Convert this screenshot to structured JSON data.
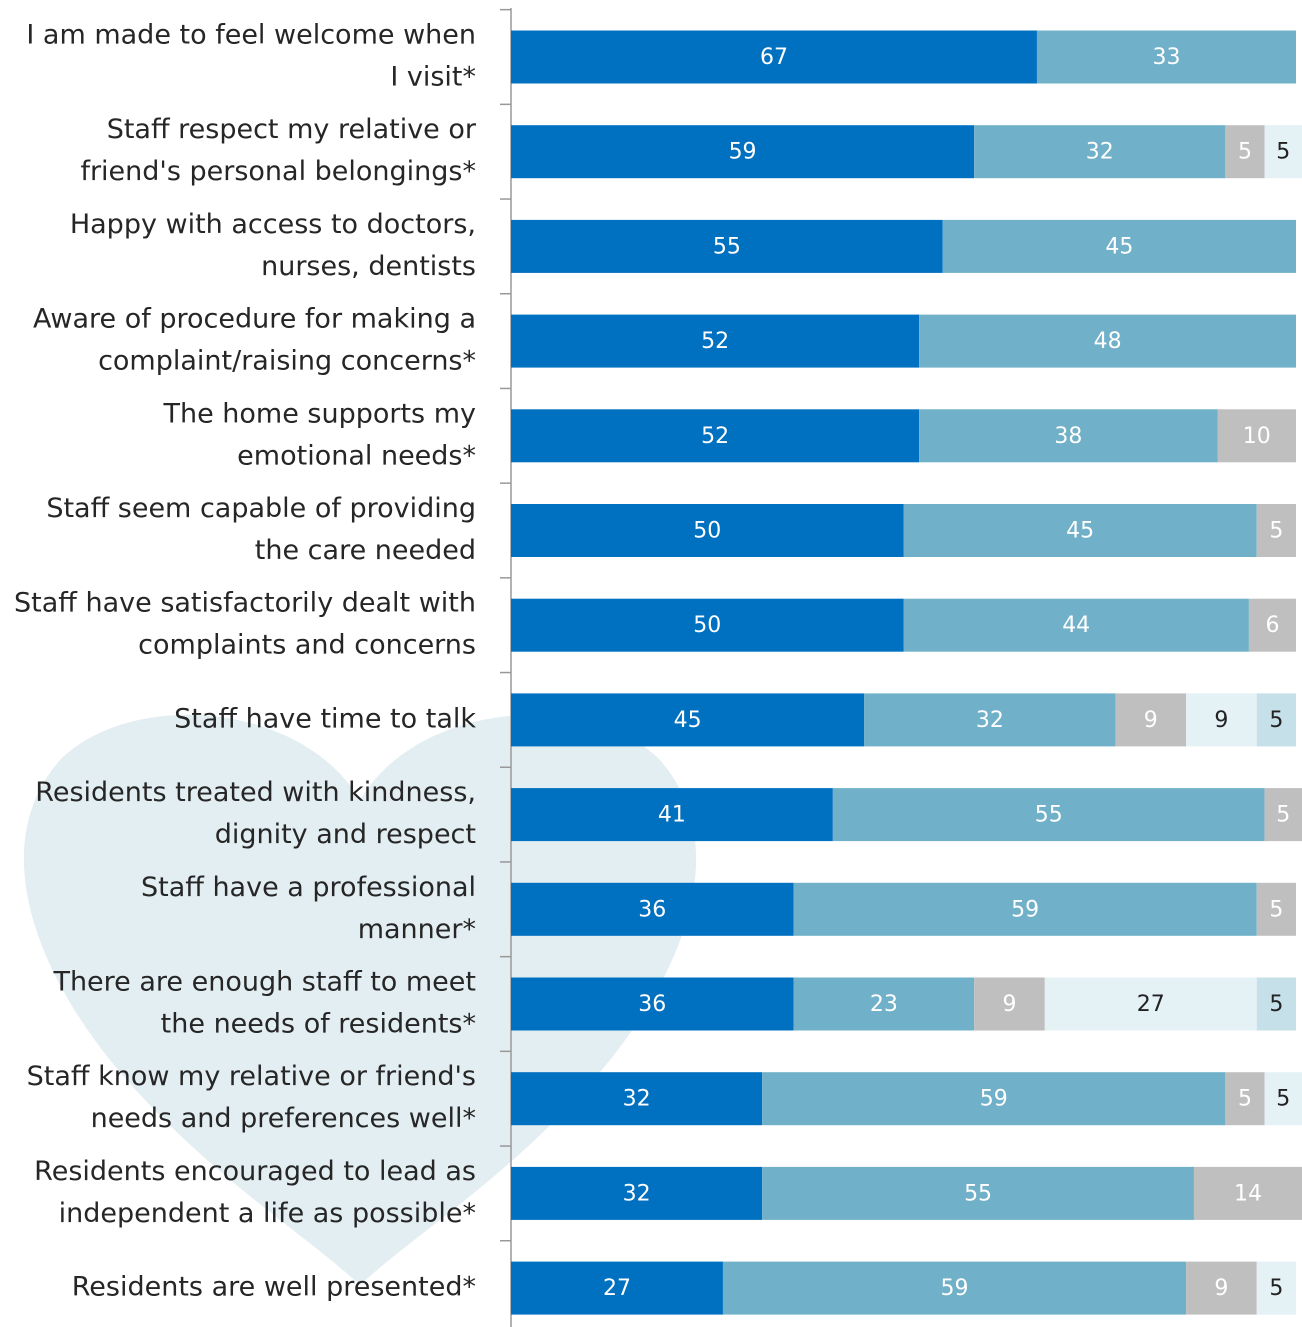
{
  "chart_data": {
    "type": "stacked-bar-horizontal",
    "categories": [
      [
        "I am made to feel welcome when",
        "I visit*"
      ],
      [
        "Staff respect my relative or",
        "friend's personal belongings*"
      ],
      [
        "Happy with access to doctors,",
        "nurses, dentists"
      ],
      [
        "Aware of procedure for making a",
        "complaint/raising concerns*"
      ],
      [
        "The home supports my",
        "emotional needs*"
      ],
      [
        "Staff seem capable of providing",
        "the care needed"
      ],
      [
        "Staff have satisfactorily dealt with",
        "complaints and concerns"
      ],
      [
        "Staff have time to talk"
      ],
      [
        "Residents treated with kindness,",
        "dignity and respect"
      ],
      [
        "Staff have a professional",
        "manner*"
      ],
      [
        "There are enough staff to meet",
        "the needs of residents*"
      ],
      [
        "Staff know my relative or friend's",
        "needs and preferences well*"
      ],
      [
        "Residents encouraged to lead as",
        "independent a life as possible*"
      ],
      [
        "Residents are well presented*"
      ]
    ],
    "series": [
      {
        "color": "#0070c0",
        "text_color": "#ffffff",
        "values": [
          67,
          59,
          55,
          52,
          52,
          50,
          50,
          45,
          41,
          36,
          36,
          32,
          32,
          27
        ]
      },
      {
        "color": "#70b0c8",
        "text_color": "#ffffff",
        "values": [
          33,
          32,
          45,
          48,
          38,
          45,
          44,
          32,
          55,
          59,
          23,
          59,
          55,
          59
        ]
      },
      {
        "color": "#bfbfbf",
        "text_color": "#ffffff",
        "values": [
          null,
          5,
          null,
          null,
          10,
          5,
          6,
          9,
          5,
          5,
          9,
          5,
          14,
          9
        ]
      },
      {
        "color": "#e4f1f5",
        "text_color": "#222222",
        "values": [
          null,
          5,
          null,
          null,
          null,
          null,
          null,
          9,
          null,
          null,
          27,
          5,
          null,
          5
        ]
      },
      {
        "color": "#c6e0ea",
        "text_color": "#222222",
        "values": [
          null,
          null,
          null,
          null,
          null,
          null,
          null,
          5,
          null,
          null,
          5,
          null,
          null,
          null
        ]
      }
    ],
    "xlim": [
      0,
      100
    ]
  }
}
